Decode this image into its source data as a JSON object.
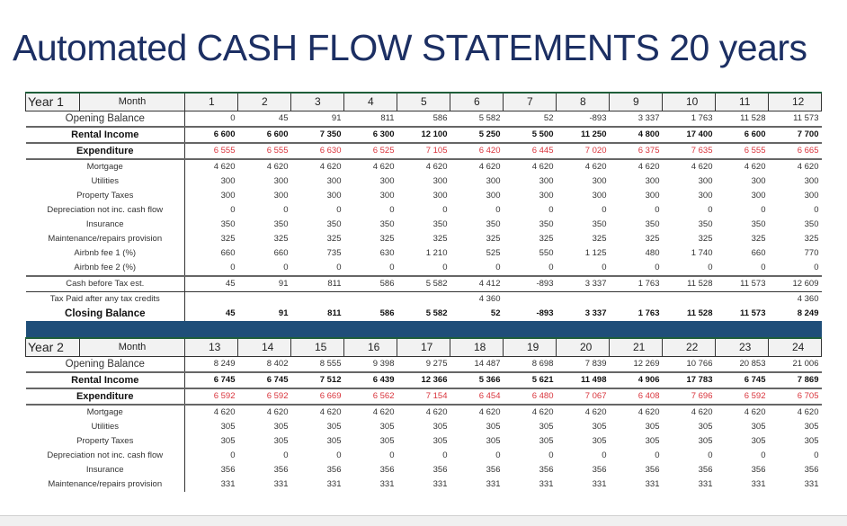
{
  "title": "Automated CASH FLOW STATEMENTS 20 years",
  "colors": {
    "title": "#1c2f63",
    "expenditure": "#d9343c",
    "band": "#1f4e79",
    "header_bg": "#f2f2f2"
  },
  "labels": {
    "month": "Month",
    "opening_balance": "Opening Balance",
    "rental_income": "Rental Income",
    "expenditure": "Expenditure",
    "mortgage": "Mortgage",
    "utilities": "Utilities",
    "property_taxes": "Property Taxes",
    "depreciation": "Depreciation not inc. cash flow",
    "insurance": "Insurance",
    "maintenance": "Maintenance/repairs provision",
    "airbnb_fee_1": "Airbnb fee 1 (%)",
    "airbnb_fee_2": "Airbnb fee 2 (%)",
    "cash_before_tax": "Cash before Tax est.",
    "tax_paid": "Tax Paid after any tax credits",
    "closing_balance": "Closing Balance"
  },
  "year1": {
    "label": "Year 1",
    "months": [
      "1",
      "2",
      "3",
      "4",
      "5",
      "6",
      "7",
      "8",
      "9",
      "10",
      "11",
      "12"
    ],
    "opening_balance": [
      "0",
      "45",
      "91",
      "811",
      "586",
      "5 582",
      "52",
      "-893",
      "3 337",
      "1 763",
      "11 528",
      "11 573"
    ],
    "rental_income": [
      "6 600",
      "6 600",
      "7 350",
      "6 300",
      "12 100",
      "5 250",
      "5 500",
      "11 250",
      "4 800",
      "17 400",
      "6 600",
      "7 700"
    ],
    "expenditure": [
      "6 555",
      "6 555",
      "6 630",
      "6 525",
      "7 105",
      "6 420",
      "6 445",
      "7 020",
      "6 375",
      "7 635",
      "6 555",
      "6 665"
    ],
    "mortgage": [
      "4 620",
      "4 620",
      "4 620",
      "4 620",
      "4 620",
      "4 620",
      "4 620",
      "4 620",
      "4 620",
      "4 620",
      "4 620",
      "4 620"
    ],
    "utilities": [
      "300",
      "300",
      "300",
      "300",
      "300",
      "300",
      "300",
      "300",
      "300",
      "300",
      "300",
      "300"
    ],
    "property_taxes": [
      "300",
      "300",
      "300",
      "300",
      "300",
      "300",
      "300",
      "300",
      "300",
      "300",
      "300",
      "300"
    ],
    "depreciation": [
      "0",
      "0",
      "0",
      "0",
      "0",
      "0",
      "0",
      "0",
      "0",
      "0",
      "0",
      "0"
    ],
    "insurance": [
      "350",
      "350",
      "350",
      "350",
      "350",
      "350",
      "350",
      "350",
      "350",
      "350",
      "350",
      "350"
    ],
    "maintenance": [
      "325",
      "325",
      "325",
      "325",
      "325",
      "325",
      "325",
      "325",
      "325",
      "325",
      "325",
      "325"
    ],
    "airbnb_fee_1": [
      "660",
      "660",
      "735",
      "630",
      "1 210",
      "525",
      "550",
      "1 125",
      "480",
      "1 740",
      "660",
      "770"
    ],
    "airbnb_fee_2": [
      "0",
      "0",
      "0",
      "0",
      "0",
      "0",
      "0",
      "0",
      "0",
      "0",
      "0",
      "0"
    ],
    "cash_before_tax": [
      "45",
      "91",
      "811",
      "586",
      "5 582",
      "4 412",
      "-893",
      "3 337",
      "1 763",
      "11 528",
      "11 573",
      "12 609"
    ],
    "tax_paid": [
      "",
      "",
      "",
      "",
      "",
      "4 360",
      "",
      "",
      "",
      "",
      "",
      "4 360"
    ],
    "closing_balance": [
      "45",
      "91",
      "811",
      "586",
      "5 582",
      "52",
      "-893",
      "3 337",
      "1 763",
      "11 528",
      "11 573",
      "8 249"
    ]
  },
  "year2": {
    "label": "Year 2",
    "months": [
      "13",
      "14",
      "15",
      "16",
      "17",
      "18",
      "19",
      "20",
      "21",
      "22",
      "23",
      "24"
    ],
    "opening_balance": [
      "8 249",
      "8 402",
      "8 555",
      "9 398",
      "9 275",
      "14 487",
      "8 698",
      "7 839",
      "12 269",
      "10 766",
      "20 853",
      "21 006"
    ],
    "rental_income": [
      "6 745",
      "6 745",
      "7 512",
      "6 439",
      "12 366",
      "5 366",
      "5 621",
      "11 498",
      "4 906",
      "17 783",
      "6 745",
      "7 869"
    ],
    "expenditure": [
      "6 592",
      "6 592",
      "6 669",
      "6 562",
      "7 154",
      "6 454",
      "6 480",
      "7 067",
      "6 408",
      "7 696",
      "6 592",
      "6 705"
    ],
    "mortgage": [
      "4 620",
      "4 620",
      "4 620",
      "4 620",
      "4 620",
      "4 620",
      "4 620",
      "4 620",
      "4 620",
      "4 620",
      "4 620",
      "4 620"
    ],
    "utilities": [
      "305",
      "305",
      "305",
      "305",
      "305",
      "305",
      "305",
      "305",
      "305",
      "305",
      "305",
      "305"
    ],
    "property_taxes": [
      "305",
      "305",
      "305",
      "305",
      "305",
      "305",
      "305",
      "305",
      "305",
      "305",
      "305",
      "305"
    ],
    "depreciation": [
      "0",
      "0",
      "0",
      "0",
      "0",
      "0",
      "0",
      "0",
      "0",
      "0",
      "0",
      "0"
    ],
    "insurance": [
      "356",
      "356",
      "356",
      "356",
      "356",
      "356",
      "356",
      "356",
      "356",
      "356",
      "356",
      "356"
    ],
    "maintenance": [
      "331",
      "331",
      "331",
      "331",
      "331",
      "331",
      "331",
      "331",
      "331",
      "331",
      "331",
      "331"
    ]
  }
}
